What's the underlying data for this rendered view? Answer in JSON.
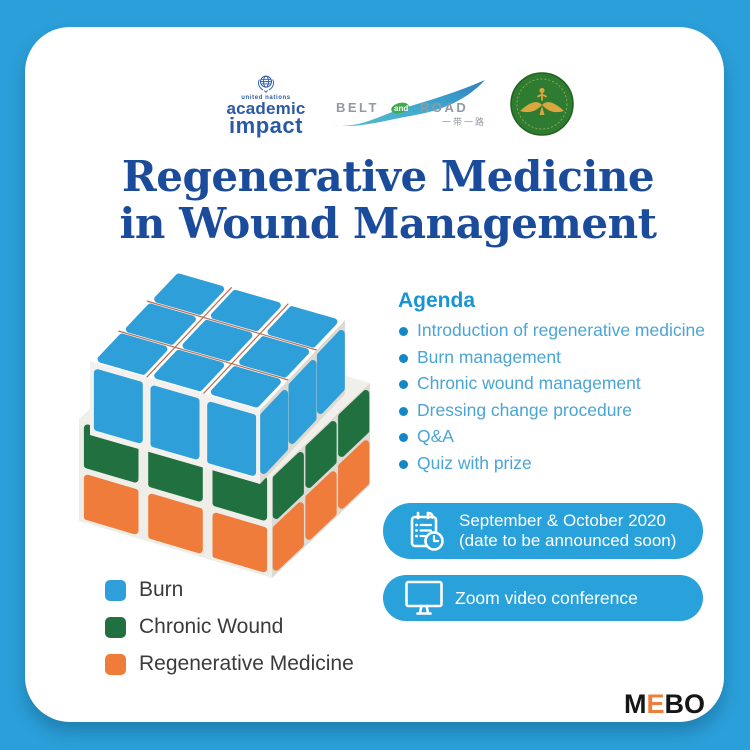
{
  "colors": {
    "frame_blue": "#2b9fd9",
    "badge_blue": "#29a1db",
    "title_blue": "#1b4c9c",
    "agenda_heading_blue": "#1795d5",
    "agenda_text_blue": "#4aa5d6",
    "agenda_bullet_blue": "#1487c8",
    "legend_text": "#3b3b3b",
    "unai_blue": "#2b5aa5",
    "belt_road_gray": "#9199a3",
    "belt_road_green": "#3fa94c"
  },
  "header": {
    "unai_logo": {
      "icon": "un-emblem-icon",
      "line1": "united nations",
      "line2": "academic",
      "line3": "impact"
    },
    "belt_road_logo": {
      "icon": "wave-swoosh-icon",
      "word1": "BELT",
      "word2": "and",
      "word3": "ROAD",
      "chinese": "一带一路"
    },
    "association_logo": {
      "icon": "green-wings-emblem-icon"
    }
  },
  "title": {
    "line1": "Regenerative Medicine",
    "line2": "in Wound Management"
  },
  "cube": {
    "icon": "rubiks-cube-illustration",
    "colors": {
      "top": "#2e9fd8",
      "middle": "#20713f",
      "bottom": "#ef7c3b"
    }
  },
  "agenda": {
    "heading": "Agenda",
    "items": [
      "Introduction of regenerative medicine",
      "Burn management",
      "Chronic wound management",
      "Dressing change procedure",
      "Q&A",
      "Quiz with prize"
    ]
  },
  "badges": {
    "date": {
      "icon": "clipboard-clock-icon",
      "line1": "September & October 2020",
      "line2": "(date to be announced soon)"
    },
    "platform": {
      "icon": "monitor-icon",
      "label": "Zoom video conference"
    }
  },
  "legend": {
    "items": [
      {
        "label": "Burn",
        "color": "#2e9fd8"
      },
      {
        "label": "Chronic Wound",
        "color": "#20713f"
      },
      {
        "label": "Regenerative Medicine",
        "color": "#ef7c3b"
      }
    ]
  },
  "footer": {
    "brand_letters": [
      {
        "t": "M",
        "color": "#161616"
      },
      {
        "t": "E",
        "color": "#ee7e3b"
      },
      {
        "t": "B",
        "color": "#161616"
      },
      {
        "t": "O",
        "color": "#161616"
      }
    ]
  }
}
